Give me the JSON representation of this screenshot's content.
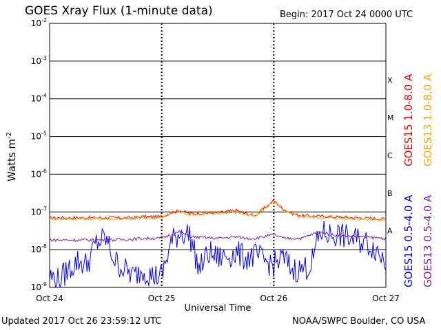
{
  "title": "GOES Xray Flux (1-minute data)",
  "begin_label": "Begin:  2017 Oct 24 0000 UTC",
  "updated_label": "Updated 2017 Oct 26 23:59:12 UTC",
  "credit_label": "NOAA/SWPC Boulder, CO USA",
  "chart_data": {
    "type": "line",
    "title": "GOES Xray Flux (1-minute data)",
    "xlabel": "Universal Time",
    "ylabel": "Watts m",
    "ylabel_sup": "-2",
    "y_scale": "log",
    "ylim": [
      1e-09,
      0.01
    ],
    "xlim": [
      "2017-10-24 00:00",
      "2017-10-27 00:00"
    ],
    "x_ticks": [
      "Oct 24",
      "Oct 25",
      "Oct 26",
      "Oct 27"
    ],
    "y_ticks": [
      {
        "base": "10",
        "exp": "-2"
      },
      {
        "base": "10",
        "exp": "-3"
      },
      {
        "base": "10",
        "exp": "-4"
      },
      {
        "base": "10",
        "exp": "-5"
      },
      {
        "base": "10",
        "exp": "-6"
      },
      {
        "base": "10",
        "exp": "-7"
      },
      {
        "base": "10",
        "exp": "-8"
      },
      {
        "base": "10",
        "exp": "-9"
      }
    ],
    "flare_classes": [
      "X",
      "M",
      "C",
      "B",
      "A"
    ],
    "grid": "horizontal lines at each decade; dotted vertical lines at day boundaries",
    "legend": [
      {
        "name": "GOES15 1.0-8.0 A",
        "color": "#ff0000"
      },
      {
        "name": "GOES13 1.0-8.0 A",
        "color": "#ffa500"
      },
      {
        "name": "GOES15 0.5-4.0 A",
        "color": "#0000ff"
      },
      {
        "name": "GOES13 0.5-4.0 A",
        "color": "#7a1fa2"
      }
    ],
    "series": [
      {
        "name": "GOES15 1.0-8.0 A",
        "color": "#ff0000",
        "x_hours": [
          0,
          6,
          12,
          18,
          20,
          24,
          26,
          28,
          30,
          36,
          40,
          42,
          44,
          48,
          50,
          52,
          54,
          60,
          66,
          72
        ],
        "values": [
          7e-08,
          7e-08,
          7e-08,
          7e-08,
          7.5e-08,
          7.5e-08,
          9.5e-08,
          1.1e-07,
          9e-08,
          9.5e-08,
          1.1e-07,
          9e-08,
          8e-08,
          2e-07,
          1.2e-07,
          9e-08,
          8e-08,
          7.5e-08,
          7e-08,
          6.5e-08
        ]
      },
      {
        "name": "GOES13 1.0-8.0 A",
        "color": "#ffa500",
        "x_hours": [
          0,
          6,
          12,
          18,
          20,
          24,
          26,
          28,
          30,
          36,
          40,
          42,
          44,
          48,
          50,
          52,
          54,
          60,
          66,
          72
        ],
        "values": [
          6.5e-08,
          6.5e-08,
          6.5e-08,
          6.5e-08,
          7e-08,
          7e-08,
          9e-08,
          1e-07,
          8.5e-08,
          9e-08,
          1e-07,
          8.5e-08,
          7.5e-08,
          1.9e-07,
          1.1e-07,
          8.5e-08,
          7.5e-08,
          7e-08,
          6.5e-08,
          6e-08
        ]
      },
      {
        "name": "GOES15 0.5-4.0 A",
        "color": "#0000ff",
        "x_hours": [
          0,
          2,
          4,
          6,
          8,
          10,
          12,
          14,
          16,
          18,
          20,
          22,
          24,
          26,
          28,
          30,
          32,
          34,
          36,
          38,
          40,
          42,
          44,
          46,
          48,
          50,
          52,
          54,
          56,
          58,
          60,
          62,
          64,
          66,
          68,
          70,
          72
        ],
        "values": [
          2e-09,
          1.5e-09,
          3e-09,
          5e-09,
          4e-09,
          1.5e-08,
          2e-08,
          5e-09,
          3e-09,
          2e-09,
          3e-09,
          2e-09,
          2e-09,
          1.5e-08,
          3e-08,
          2.5e-08,
          3e-09,
          8e-09,
          6e-09,
          7e-09,
          8e-09,
          6e-09,
          7e-09,
          5e-09,
          4e-09,
          6e-09,
          3e-09,
          3e-09,
          4e-09,
          3e-08,
          2.5e-08,
          2.5e-08,
          2e-08,
          1.8e-08,
          1.5e-08,
          1e-08,
          5e-09
        ]
      },
      {
        "name": "GOES13 0.5-4.0 A",
        "color": "#7a1fa2",
        "x_hours": [
          0,
          6,
          12,
          18,
          20,
          24,
          26,
          28,
          30,
          36,
          40,
          42,
          44,
          48,
          50,
          52,
          54,
          56,
          58,
          60,
          66,
          72
        ],
        "values": [
          1.8e-08,
          1.8e-08,
          1.8e-08,
          1.9e-08,
          2e-08,
          2e-08,
          2.5e-08,
          3e-08,
          2.2e-08,
          2e-08,
          2.2e-08,
          2e-08,
          2e-08,
          2.5e-08,
          2e-08,
          2e-08,
          2e-08,
          2.5e-08,
          3e-08,
          2.5e-08,
          2.2e-08,
          2e-08
        ]
      }
    ]
  }
}
